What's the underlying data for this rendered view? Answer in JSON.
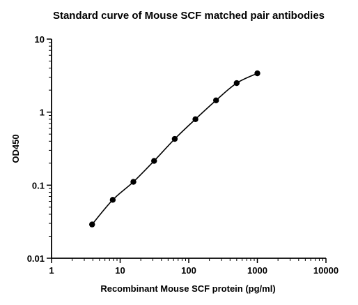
{
  "chart_data": {
    "type": "scatter",
    "title": "Standard curve of Mouse SCF matched pair antibodies",
    "xlabel": "Recombinant Mouse SCF protein (pg/ml)",
    "ylabel": "OD450",
    "xscale": "log",
    "yscale": "log",
    "xlim": [
      1,
      10000
    ],
    "ylim": [
      0.01,
      10
    ],
    "x_ticks": [
      "1",
      "10",
      "100",
      "1000",
      "10000"
    ],
    "y_ticks": [
      "0.01",
      "0.1",
      "1",
      "10"
    ],
    "grid": false,
    "legend": "none",
    "fit_curve": true,
    "colors": {
      "points": "#000000",
      "curve": "#000000",
      "axes": "#000000"
    },
    "series": [
      {
        "x": [
          3.9,
          7.8,
          15.6,
          31.25,
          62.5,
          125,
          250,
          500,
          1000
        ],
        "y": [
          0.029,
          0.063,
          0.111,
          0.215,
          0.43,
          0.8,
          1.45,
          2.5,
          3.4
        ]
      }
    ]
  }
}
